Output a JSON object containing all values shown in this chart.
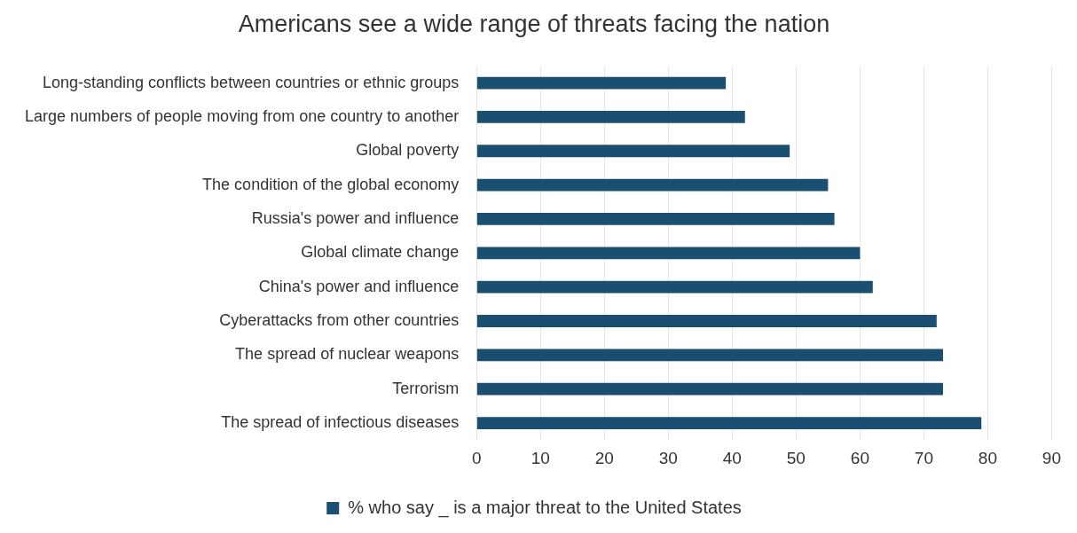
{
  "chart_data": {
    "type": "bar",
    "orientation": "horizontal",
    "title": "Americans see a wide range of threats facing the nation",
    "categories": [
      "Long-standing conflicts between countries or ethnic groups",
      "Large numbers of people moving from one country to another",
      "Global poverty",
      "The condition of the global economy",
      "Russia's power and influence",
      "Global climate change",
      "China's power and influence",
      "Cyberattacks from other countries",
      "The spread of nuclear weapons",
      "Terrorism",
      "The spread of infectious diseases"
    ],
    "series": [
      {
        "name": "% who say _ is a major threat to the United States",
        "color": "#1b4f72",
        "values": [
          39,
          42,
          49,
          55,
          56,
          60,
          62,
          72,
          73,
          73,
          79
        ]
      }
    ],
    "xlim": [
      0,
      90
    ],
    "xticks": [
      0,
      10,
      20,
      30,
      40,
      50,
      60,
      70,
      80,
      90
    ],
    "grid": "x",
    "legend": "bottom"
  }
}
